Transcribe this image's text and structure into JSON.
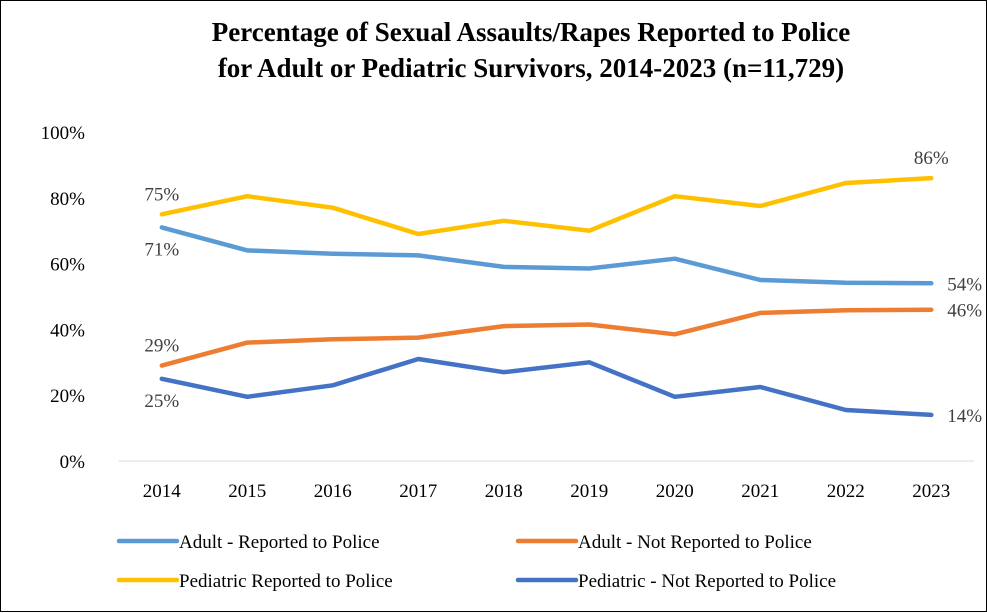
{
  "chart_data": {
    "type": "line",
    "title": "Percentage of Sexual Assaults/Rapes Reported to Police for Adult or Pediatric Survivors, 2014-2023 (n=11,729)",
    "title_lines": [
      "Percentage of Sexual Assaults/Rapes Reported to Police",
      "for Adult or Pediatric Survivors, 2014-2023 (n=11,729)"
    ],
    "categories": [
      "2014",
      "2015",
      "2016",
      "2017",
      "2018",
      "2019",
      "2020",
      "2021",
      "2022",
      "2023"
    ],
    "ylim": [
      0,
      100
    ],
    "yticks": [
      0,
      20,
      40,
      60,
      80,
      100
    ],
    "ytick_labels": [
      "0%",
      "20%",
      "40%",
      "60%",
      "80%",
      "100%"
    ],
    "grid": false,
    "legend_position": "bottom",
    "series": [
      {
        "name": "Adult - Reported to Police",
        "color": "#5B9BD5",
        "values": [
          71,
          64,
          63,
          62.5,
          59,
          58.5,
          61.5,
          55,
          54.2,
          54
        ],
        "data_labels": [
          {
            "index": 0,
            "text": "71%",
            "pos": "below"
          },
          {
            "index": 9,
            "text": "54%",
            "pos": "right"
          }
        ]
      },
      {
        "name": "Adult - Not Reported to Police",
        "color": "#ED7D31",
        "values": [
          29,
          36,
          37,
          37.5,
          41,
          41.5,
          38.5,
          45,
          45.8,
          46
        ],
        "data_labels": [
          {
            "index": 0,
            "text": "29%",
            "pos": "above"
          },
          {
            "index": 9,
            "text": "46%",
            "pos": "right"
          }
        ]
      },
      {
        "name": "Pediatric Reported to Police",
        "color": "#FFC000",
        "values": [
          75,
          80.5,
          77,
          69,
          73,
          70,
          80.5,
          77.5,
          84.5,
          86
        ],
        "data_labels": [
          {
            "index": 0,
            "text": "75%",
            "pos": "above"
          },
          {
            "index": 9,
            "text": "86%",
            "pos": "above"
          }
        ]
      },
      {
        "name": "Pediatric - Not Reported to Police",
        "color": "#4472C4",
        "values": [
          25,
          19.5,
          23,
          31,
          27,
          30,
          19.5,
          22.5,
          15.5,
          14
        ],
        "data_labels": [
          {
            "index": 0,
            "text": "25%",
            "pos": "below"
          },
          {
            "index": 9,
            "text": "14%",
            "pos": "right"
          }
        ]
      }
    ]
  }
}
